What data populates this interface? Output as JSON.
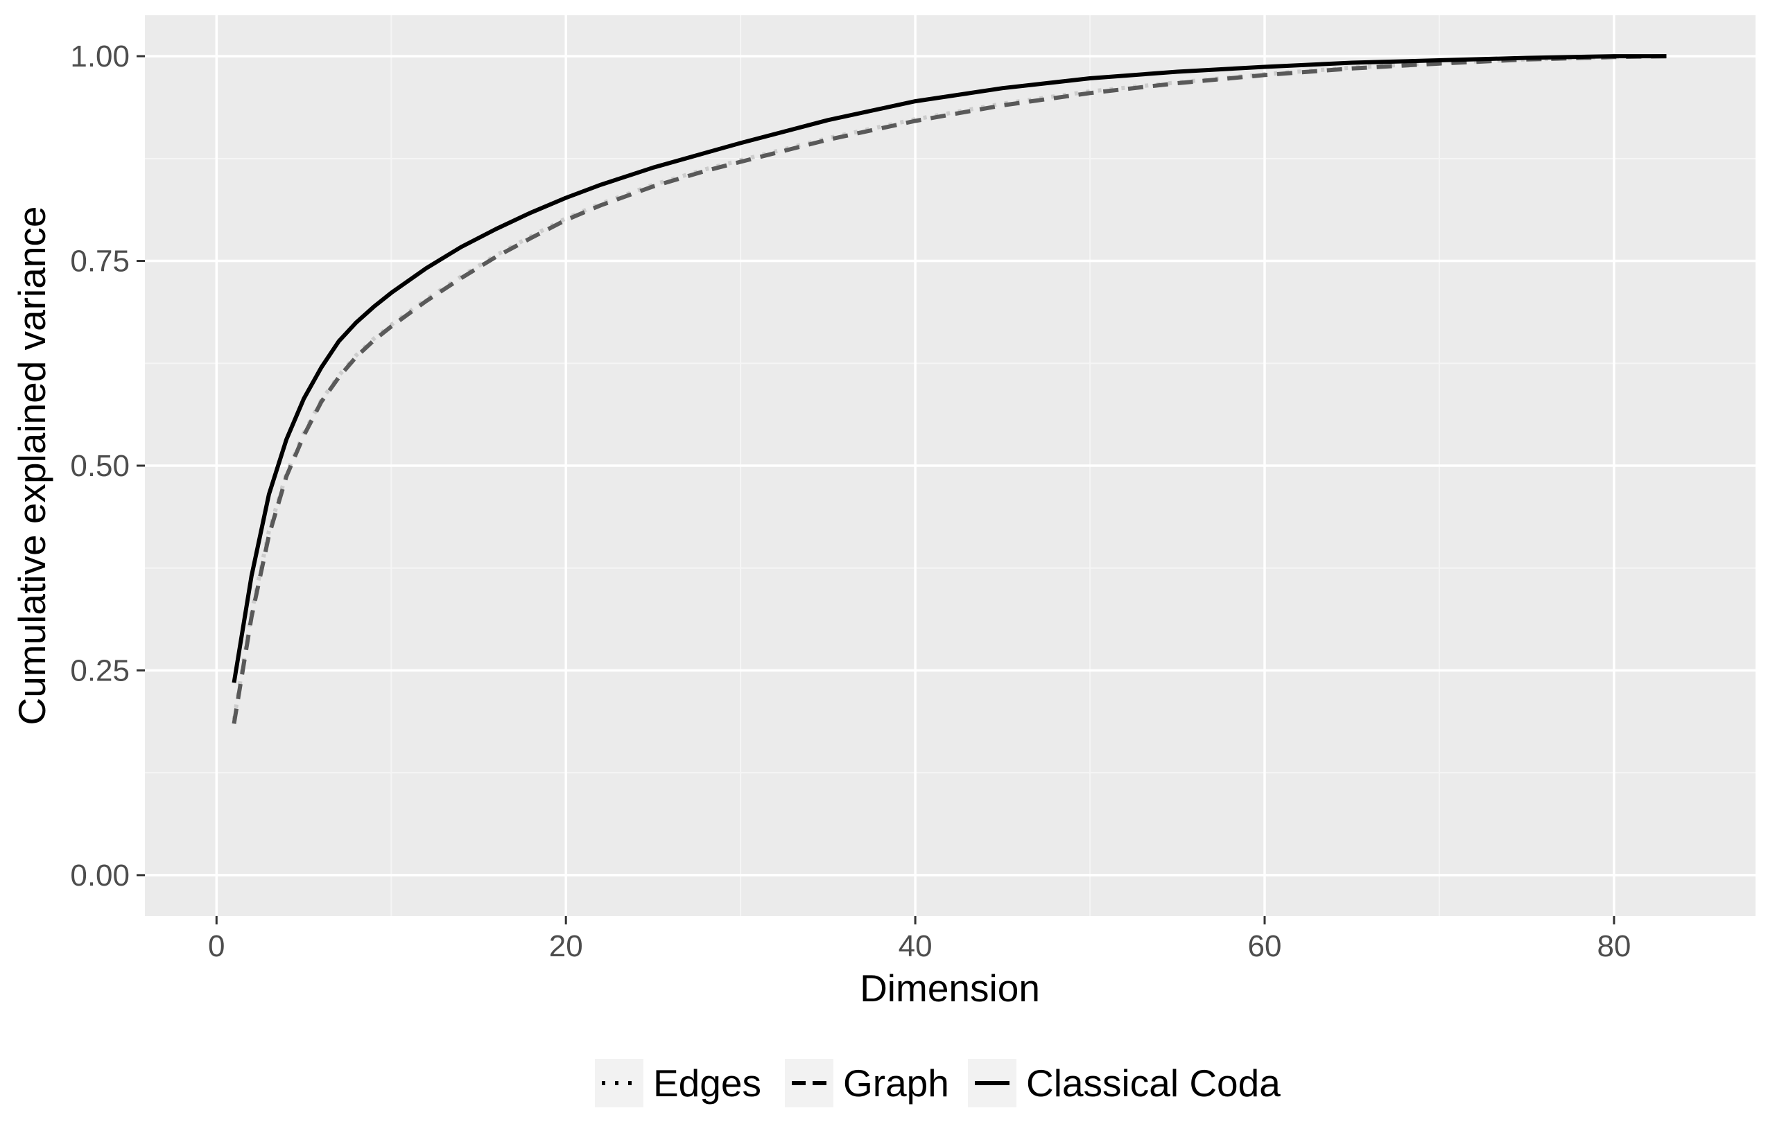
{
  "chart_data": {
    "type": "line",
    "title": "",
    "xlabel": "Dimension",
    "ylabel": "Cumulative  explained variance",
    "xlim": [
      -4.1,
      88.1
    ],
    "ylim": [
      -0.05,
      1.05
    ],
    "x_ticks": [
      0,
      20,
      40,
      60,
      80
    ],
    "x_tick_labels": [
      "0",
      "20",
      "40",
      "60",
      "80"
    ],
    "y_ticks": [
      0,
      0.25,
      0.5,
      0.75,
      1.0
    ],
    "y_tick_labels": [
      "0.00",
      "0.25",
      "0.50",
      "0.75",
      "1.00"
    ],
    "grid": true,
    "legend_position": "bottom",
    "x": [
      1,
      2,
      3,
      4,
      5,
      6,
      7,
      8,
      9,
      10,
      12,
      14,
      16,
      18,
      20,
      22,
      25,
      28,
      30,
      35,
      40,
      45,
      50,
      55,
      60,
      65,
      70,
      75,
      80,
      83
    ],
    "series": [
      {
        "name": "Edges",
        "dash": "dotted",
        "color": "#cccccc",
        "values": [
          0.19,
          0.32,
          0.42,
          0.49,
          0.54,
          0.58,
          0.61,
          0.635,
          0.655,
          0.672,
          0.703,
          0.731,
          0.757,
          0.78,
          0.802,
          0.82,
          0.843,
          0.862,
          0.873,
          0.9,
          0.923,
          0.942,
          0.957,
          0.968,
          0.978,
          0.986,
          0.992,
          0.996,
          0.999,
          1.0
        ]
      },
      {
        "name": "Graph",
        "dash": "dashed",
        "color": "#595959",
        "values": [
          0.185,
          0.315,
          0.415,
          0.487,
          0.537,
          0.578,
          0.608,
          0.633,
          0.653,
          0.67,
          0.701,
          0.729,
          0.755,
          0.778,
          0.8,
          0.818,
          0.841,
          0.86,
          0.871,
          0.898,
          0.921,
          0.94,
          0.955,
          0.967,
          0.977,
          0.985,
          0.991,
          0.996,
          0.999,
          1.0
        ]
      },
      {
        "name": "Classical Coda",
        "dash": "solid",
        "color": "#000000",
        "values": [
          0.235,
          0.365,
          0.465,
          0.532,
          0.582,
          0.62,
          0.652,
          0.675,
          0.694,
          0.711,
          0.741,
          0.767,
          0.789,
          0.809,
          0.827,
          0.843,
          0.864,
          0.882,
          0.894,
          0.922,
          0.945,
          0.961,
          0.973,
          0.981,
          0.987,
          0.992,
          0.995,
          0.998,
          1.0,
          1.0
        ]
      }
    ]
  },
  "colors": {
    "panel_background": "#ebebeb",
    "grid_major": "#ffffff",
    "grid_minor": "#f5f5f5",
    "legend_key_background": "#f2f2f2",
    "tick_label": "#4d4d4d"
  }
}
